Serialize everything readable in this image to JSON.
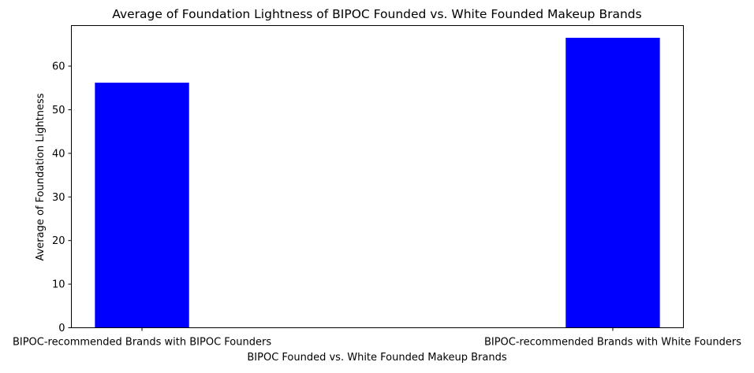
{
  "chart_data": {
    "type": "bar",
    "title": "Average of Foundation Lightness of BIPOC Founded vs. White Founded Makeup Brands",
    "xlabel": "BIPOC Founded vs. White Founded Makeup Brands",
    "ylabel": "Average of Foundation Lightness",
    "categories": [
      "BIPOC-recommended Brands with BIPOC Founders",
      "BIPOC-recommended Brands with White Founders"
    ],
    "values": [
      56.2,
      66.5
    ],
    "ylim": [
      0,
      69.3
    ],
    "yticks": [
      0,
      10,
      20,
      30,
      40,
      50,
      60
    ],
    "bar_color": "#0000ff",
    "grid": false,
    "legend": "none"
  }
}
